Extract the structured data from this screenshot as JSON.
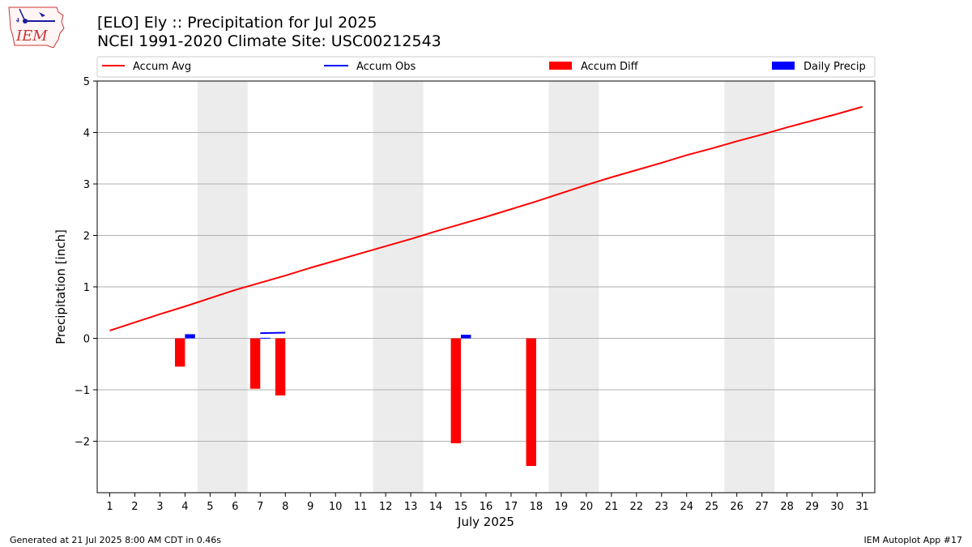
{
  "header": {
    "logo_text": "IEM",
    "title_line1": "[ELO] Ely :: Precipitation for Jul 2025",
    "title_line2": "NCEI 1991-2020 Climate Site: USC00212543"
  },
  "footer": {
    "generated": "Generated at 21 Jul 2025 8:00 AM CDT in 0.46s",
    "app": "IEM Autoplot App #17"
  },
  "colors": {
    "accum_avg": "#ff0000",
    "accum_obs": "#0000ff",
    "accum_diff": "#ff0000",
    "daily_precip": "#0000ff",
    "weekend_shade": "#ececec",
    "grid": "#b0b0b0"
  },
  "chart_data": {
    "type": "bar",
    "xlabel": "July 2025",
    "ylabel": "Precipitation [inch]",
    "xlim": [
      0.5,
      31.5
    ],
    "ylim": [
      -3,
      5
    ],
    "grid": "horizontal",
    "legend_placement": "top",
    "x_ticks": [
      "1",
      "2",
      "3",
      "4",
      "5",
      "6",
      "7",
      "8",
      "9",
      "10",
      "11",
      "12",
      "13",
      "14",
      "15",
      "16",
      "17",
      "18",
      "19",
      "20",
      "21",
      "22",
      "23",
      "24",
      "25",
      "26",
      "27",
      "28",
      "29",
      "30",
      "31"
    ],
    "y_ticks": [
      {
        "value": -2,
        "label": "−2"
      },
      {
        "value": -1,
        "label": "−1"
      },
      {
        "value": 0,
        "label": "0"
      },
      {
        "value": 1,
        "label": "1"
      },
      {
        "value": 2,
        "label": "2"
      },
      {
        "value": 3,
        "label": "3"
      },
      {
        "value": 4,
        "label": "4"
      },
      {
        "value": 5,
        "label": "5"
      }
    ],
    "weekends": [
      [
        5,
        6
      ],
      [
        12,
        13
      ],
      [
        19,
        20
      ],
      [
        26,
        27
      ]
    ],
    "legend": [
      "Accum Avg",
      "Accum Obs",
      "Accum Diff",
      "Daily Precip"
    ],
    "accum_avg": {
      "name": "Accum Avg",
      "x": [
        1,
        2,
        3,
        4,
        5,
        6,
        7,
        8,
        9,
        10,
        11,
        12,
        13,
        14,
        15,
        16,
        17,
        18,
        19,
        20,
        21,
        22,
        23,
        24,
        25,
        26,
        27,
        28,
        29,
        30,
        31
      ],
      "y": [
        0.15,
        0.31,
        0.47,
        0.62,
        0.78,
        0.94,
        1.08,
        1.22,
        1.37,
        1.51,
        1.65,
        1.79,
        1.93,
        2.08,
        2.22,
        2.36,
        2.51,
        2.66,
        2.82,
        2.98,
        3.13,
        3.27,
        3.41,
        3.56,
        3.69,
        3.83,
        3.96,
        4.1,
        4.23,
        4.36,
        4.5
      ]
    },
    "accum_obs": {
      "name": "Accum Obs",
      "x": [
        7,
        8
      ],
      "y": [
        0.1,
        0.11
      ]
    },
    "accum_diff": {
      "name": "Accum Diff",
      "x": [
        4,
        7,
        8,
        15,
        18
      ],
      "values": [
        -0.55,
        -0.98,
        -1.11,
        -2.04,
        -2.48
      ]
    },
    "daily_precip": {
      "name": "Daily Precip",
      "x": [
        4,
        7,
        15
      ],
      "values": [
        0.08,
        0.01,
        0.07
      ]
    }
  }
}
